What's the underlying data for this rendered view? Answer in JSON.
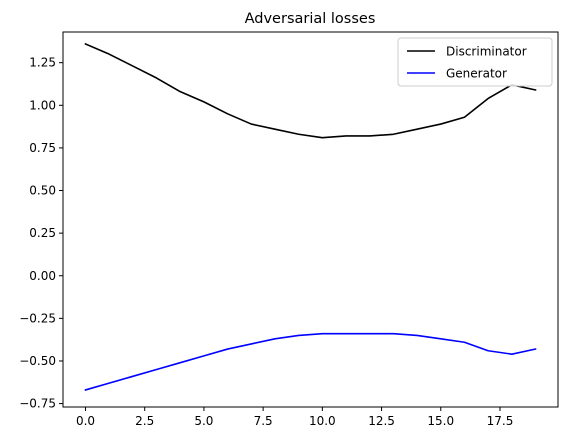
{
  "chart_data": {
    "type": "line",
    "title": "Adversarial losses",
    "xlabel": "",
    "ylabel": "",
    "x": [
      0,
      1,
      2,
      3,
      4,
      5,
      6,
      7,
      8,
      9,
      10,
      11,
      12,
      13,
      14,
      15,
      16,
      17,
      18,
      19
    ],
    "xlim": [
      -0.95,
      19.95
    ],
    "ylim": [
      -0.77,
      1.43
    ],
    "xticks": [
      0.0,
      2.5,
      5.0,
      7.5,
      10.0,
      12.5,
      15.0,
      17.5
    ],
    "xtick_labels": [
      "0.0",
      "2.5",
      "5.0",
      "7.5",
      "10.0",
      "12.5",
      "15.0",
      "17.5"
    ],
    "yticks": [
      -0.75,
      -0.5,
      -0.25,
      0.0,
      0.25,
      0.5,
      0.75,
      1.0,
      1.25
    ],
    "ytick_labels": [
      "−0.75",
      "−0.50",
      "−0.25",
      "0.00",
      "0.25",
      "0.50",
      "0.75",
      "1.00",
      "1.25"
    ],
    "grid": false,
    "legend_position": "top-right",
    "series": [
      {
        "name": "Discriminator",
        "color": "#000000",
        "values": [
          1.36,
          1.3,
          1.23,
          1.16,
          1.08,
          1.02,
          0.95,
          0.89,
          0.86,
          0.83,
          0.81,
          0.82,
          0.82,
          0.83,
          0.86,
          0.89,
          0.93,
          1.04,
          1.12,
          1.09
        ]
      },
      {
        "name": "Generator",
        "color": "#0000ff",
        "values": [
          -0.67,
          -0.63,
          -0.59,
          -0.55,
          -0.51,
          -0.47,
          -0.43,
          -0.4,
          -0.37,
          -0.35,
          -0.34,
          -0.34,
          -0.34,
          -0.34,
          -0.35,
          -0.37,
          -0.39,
          -0.44,
          -0.46,
          -0.43
        ]
      }
    ]
  }
}
